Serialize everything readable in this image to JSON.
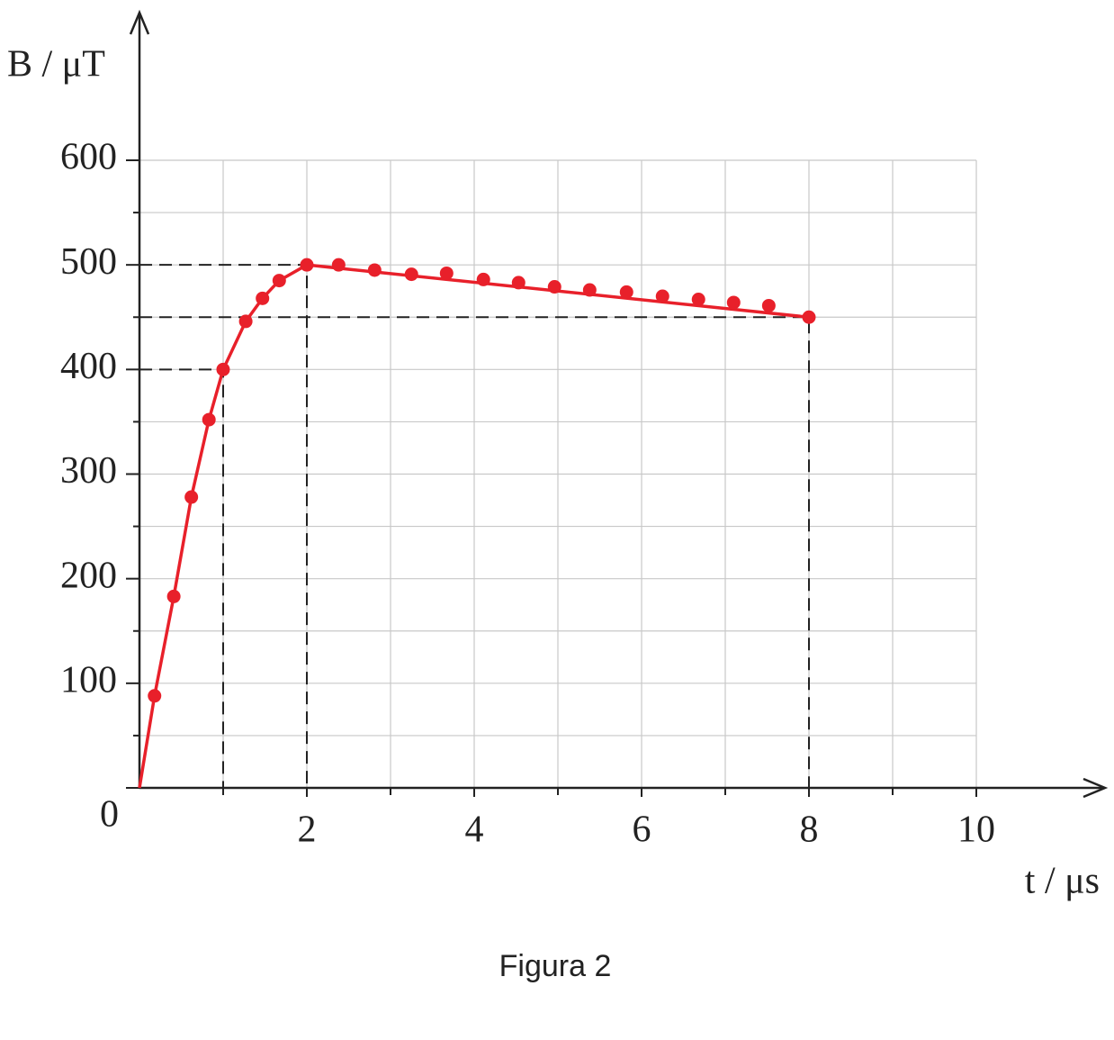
{
  "chart_data": {
    "type": "line",
    "caption": "Figura 2",
    "ylabel": "B / μT",
    "xlabel": "t / μs",
    "xlim": [
      0,
      10
    ],
    "ylim": [
      0,
      600
    ],
    "xticks": [
      2,
      4,
      6,
      8,
      10
    ],
    "yticks": [
      0,
      100,
      200,
      300,
      400,
      500,
      600
    ],
    "grid": true,
    "series": [
      {
        "name": "curve",
        "color": "#e8202a",
        "x": [
          0,
          0.18,
          0.41,
          0.62,
          0.83,
          1,
          1.27,
          1.47,
          1.67,
          2,
          8
        ],
        "values": [
          0,
          88,
          183,
          278,
          352,
          400,
          446,
          468,
          485,
          500,
          450
        ]
      },
      {
        "name": "points",
        "color": "#e8202a",
        "markers": true,
        "x": [
          0.18,
          0.41,
          0.62,
          0.83,
          1,
          1.27,
          1.47,
          1.67,
          2,
          2.38,
          2.81,
          3.25,
          3.67,
          4.11,
          4.53,
          4.96,
          5.38,
          5.82,
          6.25,
          6.68,
          7.1,
          7.52,
          8
        ],
        "values": [
          88,
          183,
          278,
          352,
          400,
          446,
          468,
          485,
          500,
          500,
          495,
          491,
          492,
          486,
          483,
          479,
          476,
          474,
          470,
          467,
          464,
          461,
          450
        ]
      }
    ],
    "guides": [
      {
        "x": 2,
        "y": 500
      },
      {
        "x": 1,
        "y": 400
      },
      {
        "x": 8,
        "y": 450
      }
    ]
  }
}
